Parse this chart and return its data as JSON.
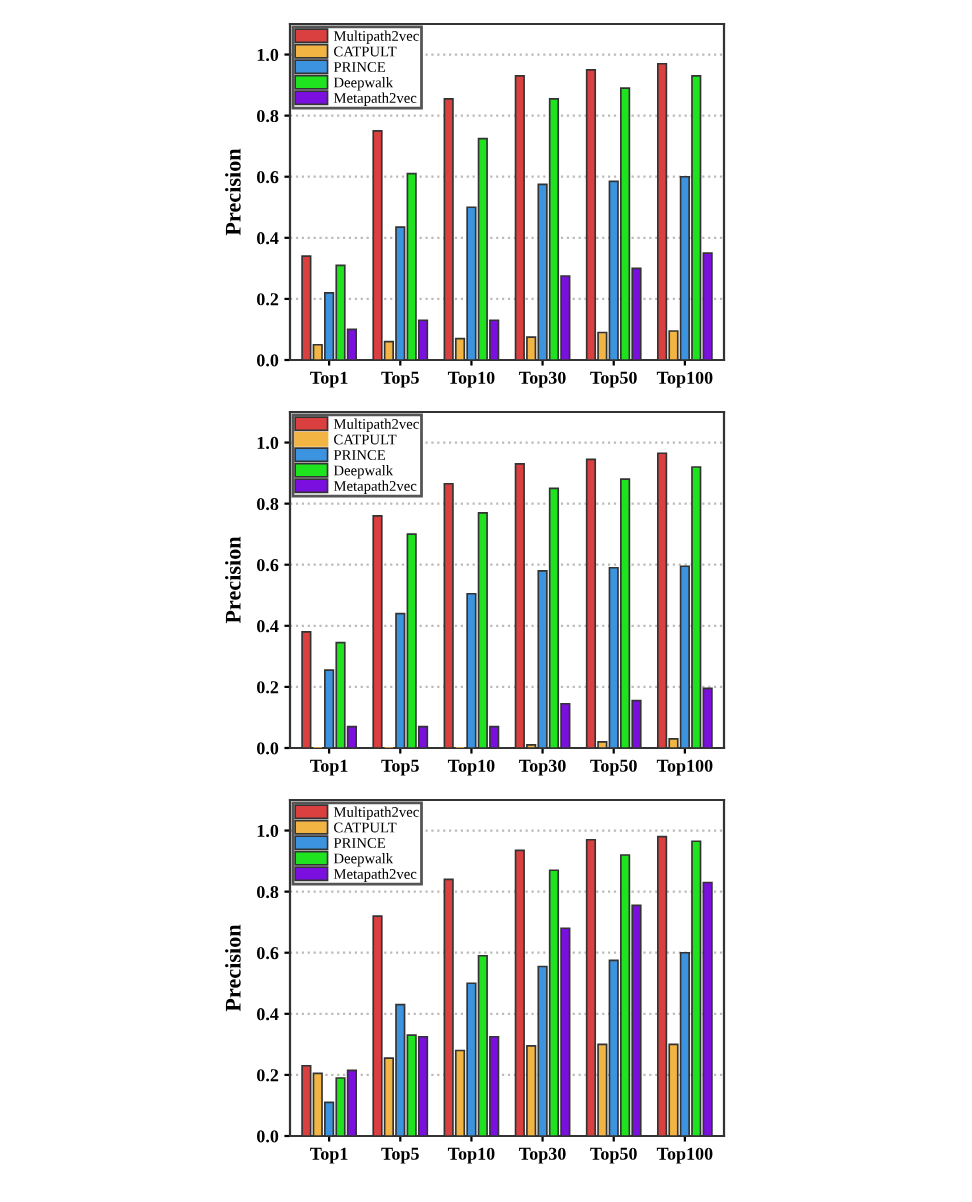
{
  "chart_data": [
    {
      "type": "bar",
      "ylabel": "Precision",
      "categories": [
        "Top1",
        "Top5",
        "Top10",
        "Top30",
        "Top50",
        "Top100"
      ],
      "ylim": [
        0,
        1.1
      ],
      "yticks": [
        {
          "value": 0,
          "label": "0.0"
        },
        {
          "value": 0.2,
          "label": "0.2"
        },
        {
          "value": 0.4,
          "label": "0.4"
        },
        {
          "value": 0.6,
          "label": "0.6"
        },
        {
          "value": 0.8,
          "label": "0.8"
        },
        {
          "value": 1,
          "label": "1.0"
        }
      ],
      "grid": "y",
      "legend": "top left",
      "series": [
        {
          "name": "Multipath2vec",
          "color": "#d9403f",
          "values": [
            0.34,
            0.75,
            0.855,
            0.93,
            0.95,
            0.97
          ]
        },
        {
          "name": "CATPULT",
          "color": "#f2b544",
          "values": [
            0.05,
            0.06,
            0.07,
            0.075,
            0.09,
            0.095
          ]
        },
        {
          "name": "PRINCE",
          "color": "#3c94e0",
          "values": [
            0.22,
            0.435,
            0.5,
            0.575,
            0.585,
            0.6
          ]
        },
        {
          "name": "Deepwalk",
          "color": "#1ee31e",
          "values": [
            0.31,
            0.61,
            0.725,
            0.855,
            0.89,
            0.93
          ]
        },
        {
          "name": "Metapath2vec",
          "color": "#7a0fe0",
          "values": [
            0.1,
            0.13,
            0.13,
            0.275,
            0.3,
            0.35
          ]
        }
      ]
    },
    {
      "type": "bar",
      "ylabel": "Precision",
      "categories": [
        "Top1",
        "Top5",
        "Top10",
        "Top30",
        "Top50",
        "Top100"
      ],
      "ylim": [
        0,
        1.1
      ],
      "yticks": [
        {
          "value": 0,
          "label": "0.0"
        },
        {
          "value": 0.2,
          "label": "0.2"
        },
        {
          "value": 0.4,
          "label": "0.4"
        },
        {
          "value": 0.6,
          "label": "0.6"
        },
        {
          "value": 0.8,
          "label": "0.8"
        },
        {
          "value": 1,
          "label": "1.0"
        }
      ],
      "grid": "y",
      "legend": "top left",
      "series": [
        {
          "name": "Multipath2vec",
          "color": "#d9403f",
          "values": [
            0.38,
            0.76,
            0.865,
            0.93,
            0.945,
            0.965
          ]
        },
        {
          "name": "CATPULT",
          "color": "#f2b544",
          "values": [
            0,
            0,
            0,
            0.01,
            0.02,
            0.03
          ]
        },
        {
          "name": "PRINCE",
          "color": "#3c94e0",
          "values": [
            0.255,
            0.44,
            0.505,
            0.58,
            0.59,
            0.595
          ]
        },
        {
          "name": "Deepwalk",
          "color": "#1ee31e",
          "values": [
            0.345,
            0.7,
            0.77,
            0.85,
            0.88,
            0.92
          ]
        },
        {
          "name": "Metapath2vec",
          "color": "#7a0fe0",
          "values": [
            0.07,
            0.07,
            0.07,
            0.145,
            0.155,
            0.195
          ]
        }
      ]
    },
    {
      "type": "bar",
      "ylabel": "Precision",
      "categories": [
        "Top1",
        "Top5",
        "Top10",
        "Top30",
        "Top50",
        "Top100"
      ],
      "ylim": [
        0,
        1.1
      ],
      "yticks": [
        {
          "value": 0,
          "label": "0.0"
        },
        {
          "value": 0.2,
          "label": "0.2"
        },
        {
          "value": 0.4,
          "label": "0.4"
        },
        {
          "value": 0.6,
          "label": "0.6"
        },
        {
          "value": 0.8,
          "label": "0.8"
        },
        {
          "value": 1,
          "label": "1.0"
        }
      ],
      "grid": "y",
      "legend": "top left",
      "series": [
        {
          "name": "Multipath2vec",
          "color": "#d9403f",
          "values": [
            0.23,
            0.72,
            0.84,
            0.935,
            0.97,
            0.98
          ]
        },
        {
          "name": "CATPULT",
          "color": "#f2b544",
          "values": [
            0.205,
            0.255,
            0.28,
            0.295,
            0.3,
            0.3
          ]
        },
        {
          "name": "PRINCE",
          "color": "#3c94e0",
          "values": [
            0.11,
            0.43,
            0.5,
            0.555,
            0.575,
            0.6
          ]
        },
        {
          "name": "Deepwalk",
          "color": "#1ee31e",
          "values": [
            0.19,
            0.33,
            0.59,
            0.87,
            0.92,
            0.965
          ]
        },
        {
          "name": "Metapath2vec",
          "color": "#7a0fe0",
          "values": [
            0.215,
            0.325,
            0.325,
            0.68,
            0.755,
            0.83
          ]
        }
      ]
    }
  ]
}
